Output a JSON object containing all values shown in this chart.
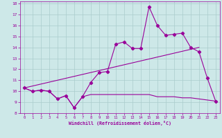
{
  "title": "",
  "xlabel": "Windchill (Refroidissement éolien,°C)",
  "background_color": "#cde8e8",
  "grid_color": "#aacccc",
  "line_color": "#990099",
  "xlim": [
    -0.5,
    23.5
  ],
  "ylim": [
    8,
    18.2
  ],
  "xticks": [
    0,
    1,
    2,
    3,
    4,
    5,
    6,
    7,
    8,
    9,
    10,
    11,
    12,
    13,
    14,
    15,
    16,
    17,
    18,
    19,
    20,
    21,
    22,
    23
  ],
  "yticks": [
    8,
    9,
    10,
    11,
    12,
    13,
    14,
    15,
    16,
    17,
    18
  ],
  "line1_x": [
    0,
    1,
    2,
    3,
    4,
    5,
    6,
    7,
    8,
    9,
    10,
    11,
    12,
    13,
    14,
    15,
    16,
    17,
    18,
    19,
    20,
    21,
    22,
    23
  ],
  "line1_y": [
    10.3,
    10.0,
    10.1,
    10.0,
    9.3,
    9.6,
    8.5,
    9.5,
    10.8,
    11.7,
    11.8,
    14.3,
    14.5,
    13.9,
    13.9,
    17.7,
    16.0,
    15.1,
    15.2,
    15.3,
    14.0,
    13.6,
    11.2,
    9.1
  ],
  "line2_x": [
    0,
    1,
    2,
    3,
    4,
    5,
    6,
    7,
    8,
    9,
    10,
    11,
    12,
    13,
    14,
    15,
    16,
    17,
    18,
    19,
    20,
    21,
    22,
    23
  ],
  "line2_y": [
    10.3,
    10.0,
    10.1,
    10.0,
    9.3,
    9.6,
    8.5,
    9.5,
    9.7,
    9.7,
    9.7,
    9.7,
    9.7,
    9.7,
    9.7,
    9.7,
    9.5,
    9.5,
    9.5,
    9.4,
    9.4,
    9.3,
    9.2,
    9.1
  ],
  "line3_x": [
    0,
    21
  ],
  "line3_y": [
    10.3,
    14.0
  ]
}
